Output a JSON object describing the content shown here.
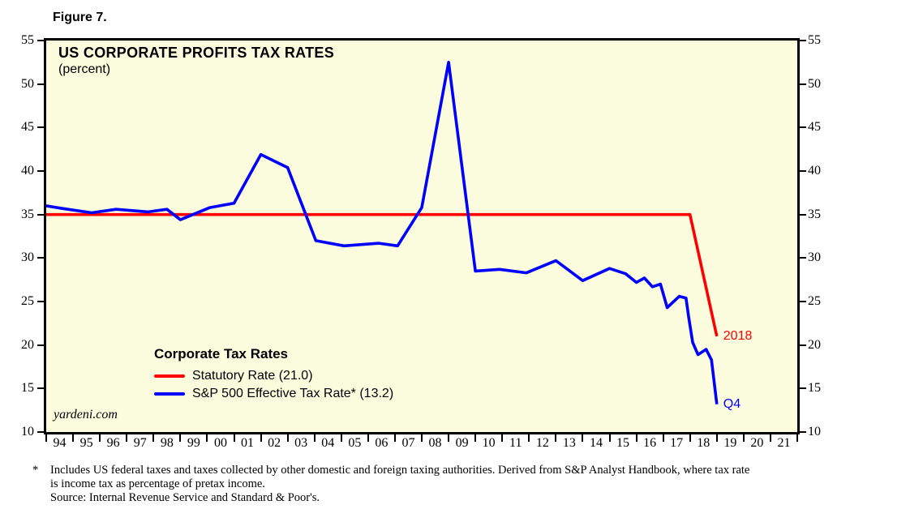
{
  "page": {
    "figure_label": "Figure 7.",
    "watermark": "yardeni.com",
    "footnote": {
      "marker": "*",
      "line1": "Includes US federal taxes and taxes collected by other domestic and foreign taxing authorities. Derived from S&P Analyst Handbook, where tax rate",
      "line2": "is income tax as percentage of pretax income.",
      "line3": "Source: Internal Revenue Service and Standard & Poor's."
    }
  },
  "chart_data": {
    "type": "line",
    "title": "US CORPORATE PROFITS TAX RATES",
    "subtitle": "(percent)",
    "ylim": [
      10,
      55
    ],
    "y_ticks": [
      55,
      50,
      45,
      40,
      35,
      30,
      25,
      20,
      15,
      10
    ],
    "x_start_year": 1994,
    "x_end_year": 2022,
    "x_tick_labels": [
      "94",
      "95",
      "96",
      "97",
      "98",
      "99",
      "00",
      "01",
      "02",
      "03",
      "04",
      "05",
      "06",
      "07",
      "08",
      "09",
      "10",
      "11",
      "12",
      "13",
      "14",
      "15",
      "16",
      "17",
      "18",
      "19",
      "20",
      "21"
    ],
    "grid": false,
    "legend": {
      "position": "inside-lower-left",
      "title": "Corporate Tax Rates",
      "entries": [
        {
          "label": "Statutory Rate (21.0)",
          "color": "#ff0000"
        },
        {
          "label": "S&P 500 Effective Tax Rate* (13.2)",
          "color": "#0000ff"
        }
      ]
    },
    "series": [
      {
        "name": "Statutory Rate",
        "color": "#ff0000",
        "points": [
          [
            1994.0,
            35.0
          ],
          [
            2018.0,
            35.0
          ],
          [
            2019.0,
            21.0
          ]
        ]
      },
      {
        "name": "S&P 500 Effective Tax Rate",
        "color": "#0000ff",
        "points": [
          [
            1994.0,
            36.0
          ],
          [
            1994.6,
            35.7
          ],
          [
            1995.7,
            35.2
          ],
          [
            1996.6,
            35.6
          ],
          [
            1997.8,
            35.3
          ],
          [
            1998.5,
            35.6
          ],
          [
            1999.0,
            34.4
          ],
          [
            2000.1,
            35.8
          ],
          [
            2001.0,
            36.3
          ],
          [
            2002.0,
            41.9
          ],
          [
            2003.0,
            40.4
          ],
          [
            2004.05,
            32.0
          ],
          [
            2005.1,
            31.4
          ],
          [
            2006.4,
            31.7
          ],
          [
            2007.1,
            31.4
          ],
          [
            2008.0,
            35.8
          ],
          [
            2009.0,
            52.5
          ],
          [
            2010.0,
            28.5
          ],
          [
            2010.9,
            28.7
          ],
          [
            2011.9,
            28.3
          ],
          [
            2013.0,
            29.7
          ],
          [
            2014.0,
            27.4
          ],
          [
            2015.0,
            28.8
          ],
          [
            2015.6,
            28.2
          ],
          [
            2016.0,
            27.2
          ],
          [
            2016.3,
            27.7
          ],
          [
            2016.6,
            26.7
          ],
          [
            2016.9,
            27.0
          ],
          [
            2017.15,
            24.3
          ],
          [
            2017.6,
            25.6
          ],
          [
            2017.85,
            25.4
          ],
          [
            2017.95,
            23.2
          ],
          [
            2018.1,
            20.3
          ],
          [
            2018.3,
            18.9
          ],
          [
            2018.6,
            19.5
          ],
          [
            2018.8,
            18.3
          ],
          [
            2019.0,
            13.2
          ]
        ]
      }
    ],
    "annotations": [
      {
        "text": "2018",
        "year": 2019.0,
        "value": 21.0,
        "color": "#ff0000"
      },
      {
        "text": "Q4",
        "year": 2019.0,
        "value": 13.2,
        "color": "#0000ff"
      }
    ],
    "colors": {
      "plot_background": "#fbfbde",
      "frame": "#000000",
      "statutory": "#ff0000",
      "effective": "#0000ff"
    }
  }
}
